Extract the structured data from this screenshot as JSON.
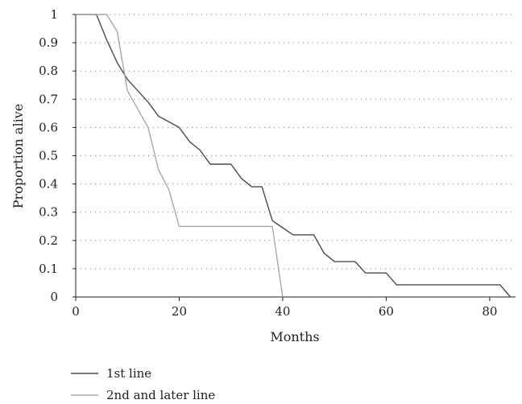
{
  "chart_data": {
    "type": "line",
    "xlabel": "Months",
    "ylabel": "Proportion alive",
    "xlim": [
      0,
      85
    ],
    "ylim": [
      0,
      1
    ],
    "x_ticks": [
      "0",
      "20",
      "40",
      "60",
      "80"
    ],
    "y_ticks": [
      "0",
      "0.1",
      "0.2",
      "0.3",
      "0.4",
      "0.5",
      "0.6",
      "0.7",
      "0.8",
      "0.9",
      "1"
    ],
    "grid": "dotted horizontal",
    "legend": "bottom-left",
    "series": [
      {
        "name": "1st line",
        "color": "#4a4a4a",
        "points": [
          [
            0,
            1
          ],
          [
            4,
            1
          ],
          [
            6,
            0.91
          ],
          [
            8,
            0.83
          ],
          [
            10,
            0.77
          ],
          [
            14,
            0.69
          ],
          [
            16,
            0.64
          ],
          [
            20,
            0.6
          ],
          [
            22,
            0.55
          ],
          [
            24,
            0.52
          ],
          [
            26,
            0.47
          ],
          [
            30,
            0.47
          ],
          [
            32,
            0.42
          ],
          [
            34,
            0.39
          ],
          [
            36,
            0.39
          ],
          [
            38,
            0.27
          ],
          [
            40,
            0.245
          ],
          [
            42,
            0.22
          ],
          [
            46,
            0.22
          ],
          [
            48,
            0.155
          ],
          [
            50,
            0.125
          ],
          [
            54,
            0.125
          ],
          [
            56,
            0.085
          ],
          [
            60,
            0.085
          ],
          [
            62,
            0.043
          ],
          [
            82,
            0.043
          ],
          [
            84,
            0
          ]
        ]
      },
      {
        "name": "2nd and later line",
        "color": "#a8a8a8",
        "points": [
          [
            0,
            1
          ],
          [
            6,
            1
          ],
          [
            8,
            0.94
          ],
          [
            10,
            0.73
          ],
          [
            14,
            0.6
          ],
          [
            16,
            0.45
          ],
          [
            18,
            0.38
          ],
          [
            20,
            0.25
          ],
          [
            38,
            0.25
          ],
          [
            40,
            0
          ]
        ]
      }
    ]
  }
}
